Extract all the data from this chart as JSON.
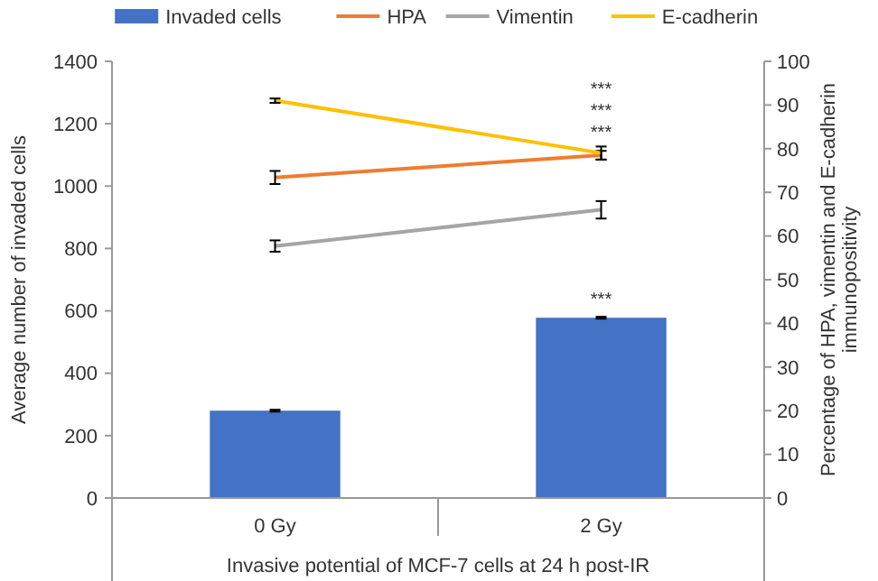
{
  "chart_data": {
    "type": "bar",
    "categories": [
      "0 Gy",
      "2 Gy"
    ],
    "xlabel": "Invasive potential of MCF-7 cells at 24 h post-IR",
    "ylabel": "Average number of invaded cells",
    "y2label": "Percentage of HPA, vimentin and E-cadherin immunopositivity",
    "ylim": [
      0,
      1400
    ],
    "yticks": [
      0,
      200,
      400,
      600,
      800,
      1000,
      1200,
      1400
    ],
    "y2lim": [
      0,
      100
    ],
    "y2ticks": [
      0,
      10,
      20,
      30,
      40,
      50,
      60,
      70,
      80,
      90,
      100
    ],
    "grid": false,
    "legend": "top",
    "marker": "none",
    "series": [
      {
        "name": "Invaded cells",
        "type": "bar",
        "color": "#4472c4",
        "values": [
          280,
          578
        ],
        "errors": [
          3,
          3
        ]
      },
      {
        "name": "HPA",
        "type": "line",
        "axis": "y2",
        "color": "#ed7d31",
        "values": [
          73.4,
          78.5
        ],
        "errors": [
          1.5,
          1
        ]
      },
      {
        "name": "Vimentin",
        "type": "line",
        "axis": "y2",
        "color": "#a5a5a5",
        "values": [
          57.7,
          66
        ],
        "errors": [
          1.3,
          2
        ]
      },
      {
        "name": "E-cadherin",
        "type": "line",
        "axis": "y2",
        "color": "#ffc000",
        "values": [
          91,
          79
        ],
        "errors": [
          0.5,
          1.5
        ]
      }
    ],
    "annotations": [
      "***",
      "***",
      "***",
      "***"
    ]
  }
}
